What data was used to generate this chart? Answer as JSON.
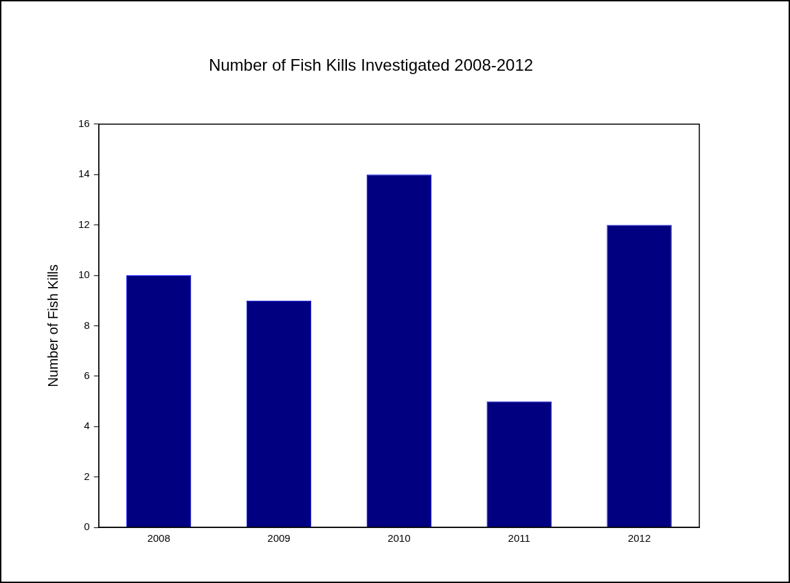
{
  "chart_data": {
    "type": "bar",
    "title": "Number of Fish Kills Investigated 2008-2012",
    "ylabel": "Number of Fish Kills",
    "categories": [
      "2008",
      "2009",
      "2010",
      "2011",
      "2012"
    ],
    "values": [
      10,
      9,
      14,
      5,
      12
    ],
    "color": "#000080",
    "ylim": [
      0,
      16
    ],
    "yticks": [
      0,
      2,
      4,
      6,
      8,
      10,
      12,
      14,
      16
    ],
    "grid": false,
    "legend": false
  }
}
